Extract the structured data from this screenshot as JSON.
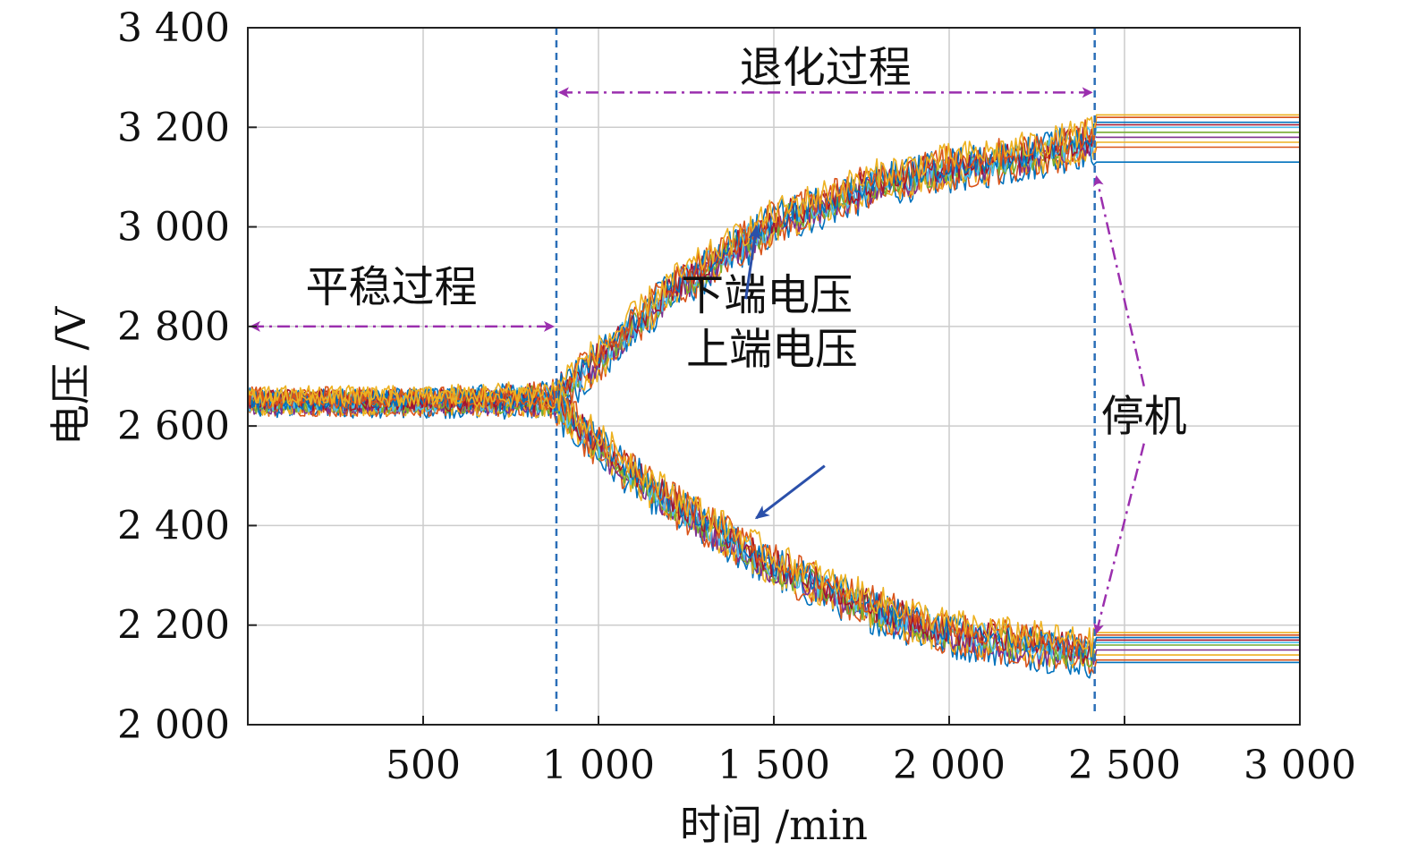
{
  "chart_data": {
    "type": "line",
    "title": "",
    "xlabel": "时间 /min",
    "ylabel": "电压 /V",
    "xlim": [
      0,
      3000
    ],
    "ylim": [
      2000,
      3400
    ],
    "grid": true,
    "x_ticks": [
      500,
      1000,
      1500,
      2000,
      2500,
      3000
    ],
    "x_tick_labels": [
      "500",
      "1 000",
      "1 500",
      "2 000",
      "2 500",
      "3 000"
    ],
    "y_ticks": [
      2000,
      2200,
      2400,
      2600,
      2800,
      3000,
      3200,
      3400
    ],
    "y_tick_labels": [
      "2 000",
      "2 200",
      "2 400",
      "2 600",
      "2 800",
      "3 000",
      "3 200",
      "3 400"
    ],
    "vlines": [
      880,
      2415
    ],
    "colors": [
      "#0072BD",
      "#D95319",
      "#EDB120",
      "#7E2F8E",
      "#77AC30",
      "#4DBEEE",
      "#A2142F"
    ],
    "annotation_color": "#9B2FAE",
    "arrow_color": "#2B50AA",
    "vline_color": "#2B6FB8",
    "regions": {
      "stable_label": "平稳过程",
      "stable_range": [
        0,
        880
      ],
      "stable_y": 2800,
      "degrade_label": "退化过程",
      "degrade_range": [
        880,
        2415
      ],
      "degrade_y": 3270,
      "stop_label": "停机"
    },
    "annotations": [
      {
        "text": "下端电压",
        "x": 1480,
        "y": 2870
      },
      {
        "text": "上端电压",
        "x": 1495,
        "y": 2700
      }
    ],
    "envelope": {
      "x": [
        0,
        500,
        880,
        1000,
        1200,
        1500,
        1800,
        2000,
        2200,
        2415
      ],
      "upper_mean": [
        2650,
        2650,
        2665,
        2735,
        2870,
        3010,
        3090,
        3120,
        3140,
        3175
      ],
      "lower_mean": [
        2650,
        2650,
        2645,
        2560,
        2450,
        2320,
        2230,
        2185,
        2165,
        2145
      ],
      "final_upper": [
        3130,
        3160,
        3170,
        3180,
        3190,
        3200,
        3205,
        3210,
        3220,
        3225
      ],
      "final_lower": [
        2125,
        2130,
        2140,
        2150,
        2160,
        2165,
        2170,
        2175,
        2180,
        2185
      ]
    }
  }
}
